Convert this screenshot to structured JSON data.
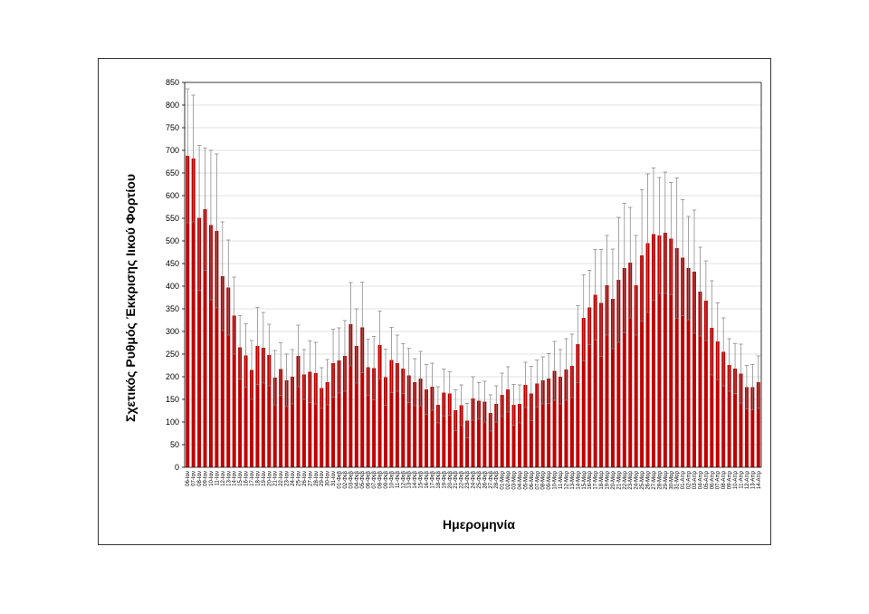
{
  "chart_data": {
    "type": "bar",
    "title": "",
    "ylabel": "Σχετικός Ρυθμός Έκκρισης Ιικού Φορτίου",
    "xlabel": "Ημερομηνία",
    "ylim": [
      0,
      850
    ],
    "yticks": [
      0,
      50,
      100,
      150,
      200,
      250,
      300,
      350,
      400,
      450,
      500,
      550,
      600,
      650,
      700,
      750,
      800,
      850
    ],
    "grid": true,
    "bar_color": "#c00000",
    "error_color": "#7f7f7f",
    "categories": [
      "06-Ιαν",
      "07-Ιαν",
      "08-Ιαν",
      "09-Ιαν",
      "10-Ιαν",
      "11-Ιαν",
      "12-Ιαν",
      "13-Ιαν",
      "14-Ιαν",
      "15-Ιαν",
      "16-Ιαν",
      "17-Ιαν",
      "18-Ιαν",
      "19-Ιαν",
      "20-Ιαν",
      "21-Ιαν",
      "22-Ιαν",
      "23-Ιαν",
      "24-Ιαν",
      "25-Ιαν",
      "26-Ιαν",
      "27-Ιαν",
      "28-Ιαν",
      "29-Ιαν",
      "30-Ιαν",
      "31-Ιαν",
      "01-Φεβ",
      "02-Φεβ",
      "03-Φεβ",
      "04-Φεβ",
      "05-Φεβ",
      "06-Φεβ",
      "07-Φεβ",
      "08-Φεβ",
      "09-Φεβ",
      "10-Φεβ",
      "11-Φεβ",
      "12-Φεβ",
      "13-Φεβ",
      "14-Φεβ",
      "15-Φεβ",
      "16-Φεβ",
      "17-Φεβ",
      "18-Φεβ",
      "19-Φεβ",
      "20-Φεβ",
      "21-Φεβ",
      "22-Φεβ",
      "23-Φεβ",
      "24-Φεβ",
      "25-Φεβ",
      "26-Φεβ",
      "27-Φεβ",
      "28-Φεβ",
      "01-Μαρ",
      "02-Μαρ",
      "03-Μαρ",
      "04-Μαρ",
      "05-Μαρ",
      "06-Μαρ",
      "07-Μαρ",
      "08-Μαρ",
      "09-Μαρ",
      "10-Μαρ",
      "11-Μαρ",
      "12-Μαρ",
      "13-Μαρ",
      "14-Μαρ",
      "15-Μαρ",
      "16-Μαρ",
      "17-Μαρ",
      "18-Μαρ",
      "19-Μαρ",
      "20-Μαρ",
      "21-Μαρ",
      "22-Μαρ",
      "23-Μαρ",
      "24-Μαρ",
      "25-Μαρ",
      "26-Μαρ",
      "27-Μαρ",
      "28-Μαρ",
      "29-Μαρ",
      "30-Μαρ",
      "31-Μαρ",
      "01-Απρ",
      "02-Απρ",
      "03-Απρ",
      "04-Απρ",
      "05-Απρ",
      "06-Απρ",
      "07-Απρ",
      "08-Απρ",
      "09-Απρ",
      "10-Απρ",
      "11-Απρ",
      "12-Απρ",
      "13-Απρ",
      "14-Απρ"
    ],
    "values": [
      688,
      682,
      551,
      570,
      535,
      522,
      422,
      397,
      335,
      265,
      247,
      215,
      268,
      264,
      248,
      198,
      217,
      192,
      200,
      246,
      205,
      211,
      208,
      175,
      188,
      230,
      236,
      246,
      316,
      268,
      309,
      221,
      219,
      270,
      199,
      237,
      230,
      218,
      203,
      188,
      196,
      172,
      178,
      138,
      165,
      163,
      126,
      137,
      103,
      152,
      147,
      145,
      120,
      140,
      160,
      172,
      138,
      140,
      182,
      163,
      185,
      192,
      196,
      213,
      200,
      216,
      224,
      272,
      330,
      353,
      381,
      363,
      402,
      372,
      414,
      440,
      452,
      402,
      468,
      495,
      515,
      512,
      518,
      505,
      484,
      463,
      440,
      432,
      388,
      368,
      308,
      278,
      255,
      226,
      218,
      207,
      177,
      177,
      188
    ],
    "errors": [
      148,
      140,
      160,
      135,
      165,
      170,
      120,
      105,
      85,
      70,
      70,
      65,
      85,
      78,
      68,
      60,
      58,
      58,
      60,
      68,
      55,
      68,
      68,
      45,
      50,
      75,
      72,
      78,
      92,
      82,
      100,
      62,
      70,
      75,
      62,
      72,
      62,
      55,
      60,
      52,
      60,
      55,
      52,
      40,
      52,
      48,
      45,
      45,
      38,
      48,
      40,
      45,
      40,
      40,
      48,
      50,
      45,
      42,
      50,
      60,
      52,
      52,
      55,
      65,
      60,
      68,
      70,
      85,
      95,
      82,
      100,
      118,
      110,
      110,
      138,
      143,
      122,
      110,
      145,
      153,
      146,
      128,
      134,
      124,
      155,
      128,
      114,
      136,
      98,
      88,
      104,
      85,
      75,
      58,
      55,
      65,
      48,
      50,
      58
    ]
  }
}
